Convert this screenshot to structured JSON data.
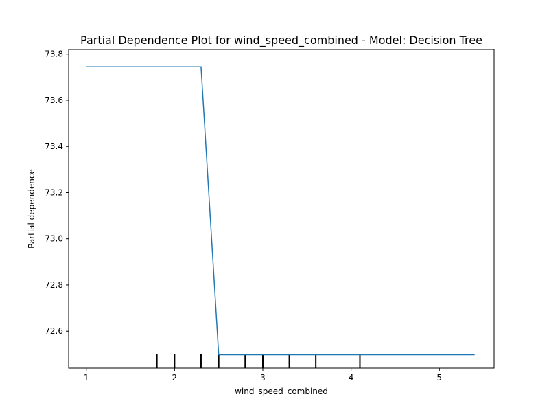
{
  "chart_data": {
    "type": "line",
    "title": "Partial Dependence Plot for wind_speed_combined - Model: Decision Tree",
    "xlabel": "wind_speed_combined",
    "ylabel": "Partial dependence",
    "xlim": [
      0.8,
      5.62
    ],
    "ylim": [
      72.44,
      73.82
    ],
    "x_ticks": [
      1,
      2,
      3,
      4,
      5
    ],
    "y_ticks": [
      72.6,
      72.8,
      73.0,
      73.2,
      73.4,
      73.6,
      73.8
    ],
    "y_tick_labels": [
      "72.6",
      "72.8",
      "73.0",
      "73.2",
      "73.4",
      "73.6",
      "73.8"
    ],
    "series": [
      {
        "color": "#1f77b4",
        "x": [
          1.0,
          2.3,
          2.5,
          5.4
        ],
        "y": [
          73.745,
          73.745,
          72.498,
          72.498
        ]
      }
    ],
    "rug_x": [
      1.8,
      2.0,
      2.3,
      2.5,
      2.8,
      3.0,
      3.3,
      3.6,
      4.1
    ],
    "grid": false,
    "legend": "none"
  }
}
